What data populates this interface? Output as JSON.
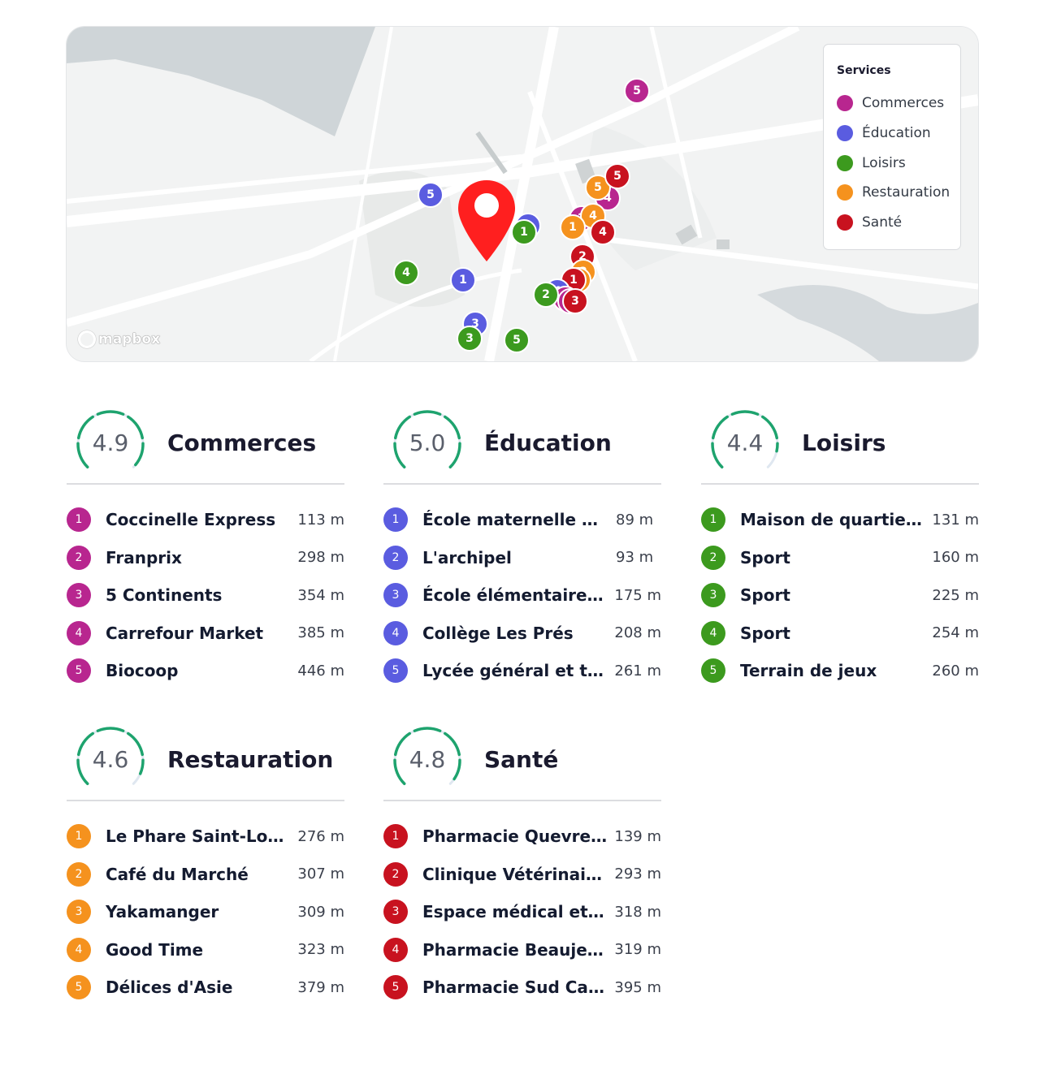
{
  "colors": {
    "commerces": "#b8268f",
    "education": "#5a5ce0",
    "loisirs": "#3c9a1e",
    "restauration": "#f5921e",
    "sante": "#c8121f",
    "gauge": "#1ea36e",
    "pin": "#ff1f1f"
  },
  "map": {
    "attribution": "mapbox",
    "legend": {
      "title": "Services",
      "items": [
        "Commerces",
        "Éducation",
        "Loisirs",
        "Restauration",
        "Santé"
      ]
    },
    "location_pin_icon": "map-pin-icon"
  },
  "categories": {
    "commerces": {
      "title": "Commerces",
      "score": "4.9",
      "score_value": 4.9,
      "items": [
        {
          "n": "1",
          "name": "Coccinelle Express",
          "dist": "113 m"
        },
        {
          "n": "2",
          "name": "Franprix",
          "dist": "298 m"
        },
        {
          "n": "3",
          "name": "5 Continents",
          "dist": "354 m"
        },
        {
          "n": "4",
          "name": "Carrefour Market",
          "dist": "385 m"
        },
        {
          "n": "5",
          "name": "Biocoop",
          "dist": "446 m"
        }
      ]
    },
    "education": {
      "title": "Éducation",
      "score": "5.0",
      "score_value": 5.0,
      "items": [
        {
          "n": "1",
          "name": "École maternelle Sain...",
          "dist": "89 m"
        },
        {
          "n": "2",
          "name": "L'archipel",
          "dist": "93 m"
        },
        {
          "n": "3",
          "name": "École élémentaire Le...",
          "dist": "175 m"
        },
        {
          "n": "4",
          "name": "Collège Les Prés",
          "dist": "208 m"
        },
        {
          "n": "5",
          "name": "Lycée général et tec...",
          "dist": "261 m"
        }
      ]
    },
    "loisirs": {
      "title": "Loisirs",
      "score": "4.4",
      "score_value": 4.4,
      "items": [
        {
          "n": "1",
          "name": "Maison de quartier A...",
          "dist": "131 m"
        },
        {
          "n": "2",
          "name": "Sport",
          "dist": "160 m"
        },
        {
          "n": "3",
          "name": "Sport",
          "dist": "225 m"
        },
        {
          "n": "4",
          "name": "Sport",
          "dist": "254 m"
        },
        {
          "n": "5",
          "name": "Terrain de jeux",
          "dist": "260 m"
        }
      ]
    },
    "restauration": {
      "title": "Restauration",
      "score": "4.6",
      "score_value": 4.6,
      "items": [
        {
          "n": "1",
          "name": "Le Phare Saint-Louis",
          "dist": "276 m"
        },
        {
          "n": "2",
          "name": "Café du Marché",
          "dist": "307 m"
        },
        {
          "n": "3",
          "name": "Yakamanger",
          "dist": "309 m"
        },
        {
          "n": "4",
          "name": "Good Time",
          "dist": "323 m"
        },
        {
          "n": "5",
          "name": "Délices d'Asie",
          "dist": "379 m"
        }
      ]
    },
    "sante": {
      "title": "Santé",
      "score": "4.8",
      "score_value": 4.8,
      "items": [
        {
          "n": "1",
          "name": "Pharmacie Quevreux",
          "dist": "139 m"
        },
        {
          "n": "2",
          "name": "Clinique Vétérinaire...",
          "dist": "293 m"
        },
        {
          "n": "3",
          "name": "Espace médical et d...",
          "dist": "318 m"
        },
        {
          "n": "4",
          "name": "Pharmacie Beaujean",
          "dist": "319 m"
        },
        {
          "n": "5",
          "name": "Pharmacie Sud Canal",
          "dist": "395 m"
        }
      ]
    }
  }
}
